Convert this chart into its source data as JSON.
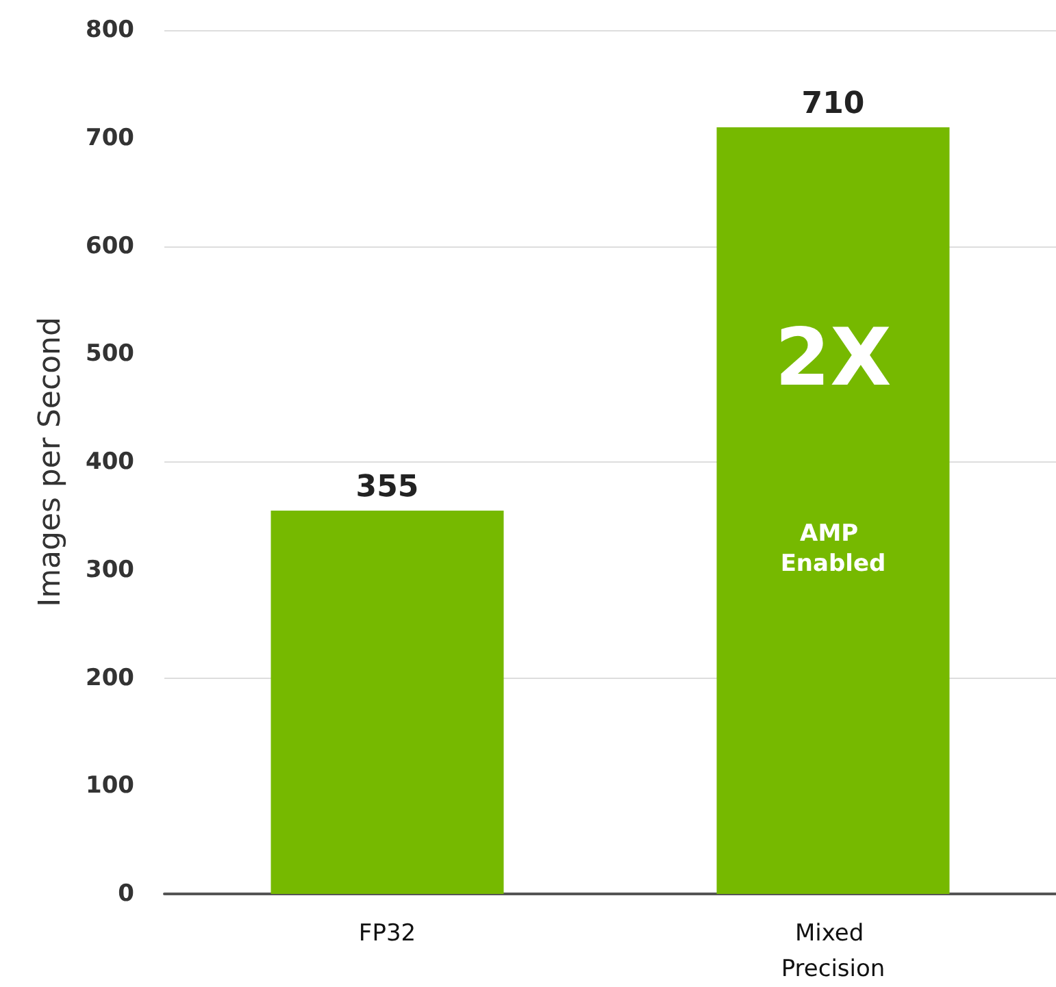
{
  "chart_data": {
    "type": "bar",
    "ylabel": "Images per Second",
    "categories": [
      "FP32",
      "Mixed Precision"
    ],
    "values": [
      355,
      710
    ],
    "color": "#76b900",
    "ylim": [
      0,
      800
    ],
    "yticks": [
      0,
      100,
      200,
      300,
      400,
      500,
      600,
      700,
      800
    ],
    "grid": "y",
    "data_labels": true,
    "annotations": [
      "2X",
      "AMP Enabled"
    ]
  }
}
